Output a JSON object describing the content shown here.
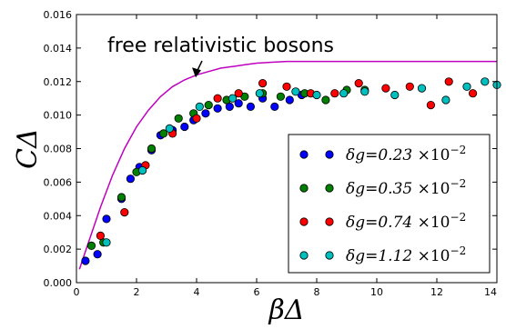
{
  "chart_data": {
    "type": "scatter",
    "xlabel": "βΔ",
    "ylabel": "CΔ",
    "xlim": [
      0,
      14
    ],
    "ylim": [
      0,
      0.016
    ],
    "xticks": [
      "0",
      "2",
      "4",
      "6",
      "8",
      "10",
      "12",
      "14"
    ],
    "yticks": [
      "0.000",
      "0.002",
      "0.004",
      "0.006",
      "0.008",
      "0.010",
      "0.012",
      "0.014",
      "0.016"
    ],
    "grid": false,
    "legend_position": "lower-right",
    "annotation": {
      "text": "free relativistic bosons",
      "arrow_to": [
        4.0,
        0.0117
      ]
    },
    "curve": {
      "color": "#bf00bf",
      "x": [
        0.1,
        0.4,
        0.8,
        1.2,
        1.6,
        2.0,
        2.4,
        2.8,
        3.2,
        3.6,
        4.0,
        4.4,
        4.8,
        5.2,
        5.6,
        6.0,
        6.5,
        7.0,
        7.5,
        8.0,
        9.0,
        10.0,
        11.0,
        12.0,
        13.0,
        14.0
      ],
      "y": [
        0.0008,
        0.0024,
        0.0045,
        0.0064,
        0.008,
        0.0093,
        0.0103,
        0.0111,
        0.0117,
        0.0121,
        0.0124,
        0.0126,
        0.0128,
        0.0129,
        0.013,
        0.0131,
        0.01315,
        0.0132,
        0.0132,
        0.0132,
        0.0132,
        0.0132,
        0.0132,
        0.0132,
        0.0132,
        0.0132
      ]
    },
    "series": [
      {
        "name": "δg=0.23 ×10⁻²",
        "label_main": "δg=0.23",
        "label_exp": "×10",
        "label_pow": "−2",
        "color": "#0000ff",
        "x": [
          0.3,
          0.7,
          1.0,
          1.5,
          1.8,
          2.1,
          2.5,
          2.8,
          3.2,
          3.6,
          3.9,
          4.3,
          4.7,
          5.1,
          5.4,
          5.8,
          6.2,
          6.6,
          7.1,
          7.5
        ],
        "y": [
          0.0013,
          0.0017,
          0.0038,
          0.005,
          0.0062,
          0.0069,
          0.0079,
          0.0088,
          0.0091,
          0.0093,
          0.0097,
          0.0101,
          0.0104,
          0.0105,
          0.0107,
          0.0105,
          0.011,
          0.0105,
          0.0109,
          0.0112
        ]
      },
      {
        "name": "δg=0.35 ×10⁻²",
        "label_main": "δg=0.35",
        "label_exp": "×10",
        "label_pow": "−2",
        "color": "#007f00",
        "x": [
          0.5,
          0.9,
          1.5,
          2.0,
          2.5,
          2.9,
          3.4,
          3.9,
          4.4,
          5.0,
          5.6,
          6.2,
          6.8,
          7.6,
          8.3,
          9.0,
          9.6
        ],
        "y": [
          0.0022,
          0.0024,
          0.0051,
          0.0066,
          0.008,
          0.0089,
          0.0098,
          0.0101,
          0.0106,
          0.0109,
          0.0111,
          0.0113,
          0.0111,
          0.0113,
          0.0109,
          0.0115,
          0.0115
        ]
      },
      {
        "name": "δg=0.74 ×10⁻²",
        "label_main": "δg=0.74",
        "label_exp": "×10",
        "label_pow": "−2",
        "color": "#ff0000",
        "x": [
          0.8,
          1.6,
          2.3,
          3.2,
          4.0,
          4.7,
          5.4,
          6.2,
          7.0,
          7.8,
          8.6,
          9.4,
          10.3,
          11.1,
          11.8,
          12.4,
          13.2
        ],
        "y": [
          0.0028,
          0.0042,
          0.007,
          0.0089,
          0.0098,
          0.011,
          0.0113,
          0.0119,
          0.0117,
          0.0113,
          0.0113,
          0.0119,
          0.0116,
          0.0117,
          0.0106,
          0.012,
          0.0113
        ]
      },
      {
        "name": "δg=1.12 ×10⁻²",
        "label_main": "δg=1.12",
        "label_exp": "×10",
        "label_pow": "−2",
        "color": "#00bfbf",
        "x": [
          1.0,
          2.2,
          3.1,
          4.1,
          5.2,
          6.1,
          7.3,
          8.0,
          8.9,
          9.6,
          10.6,
          11.5,
          12.3,
          13.0,
          13.6,
          14.0
        ],
        "y": [
          0.0024,
          0.0067,
          0.0092,
          0.0105,
          0.011,
          0.0113,
          0.0114,
          0.0112,
          0.0113,
          0.0114,
          0.0112,
          0.0116,
          0.0109,
          0.0117,
          0.012,
          0.0118
        ]
      }
    ]
  }
}
